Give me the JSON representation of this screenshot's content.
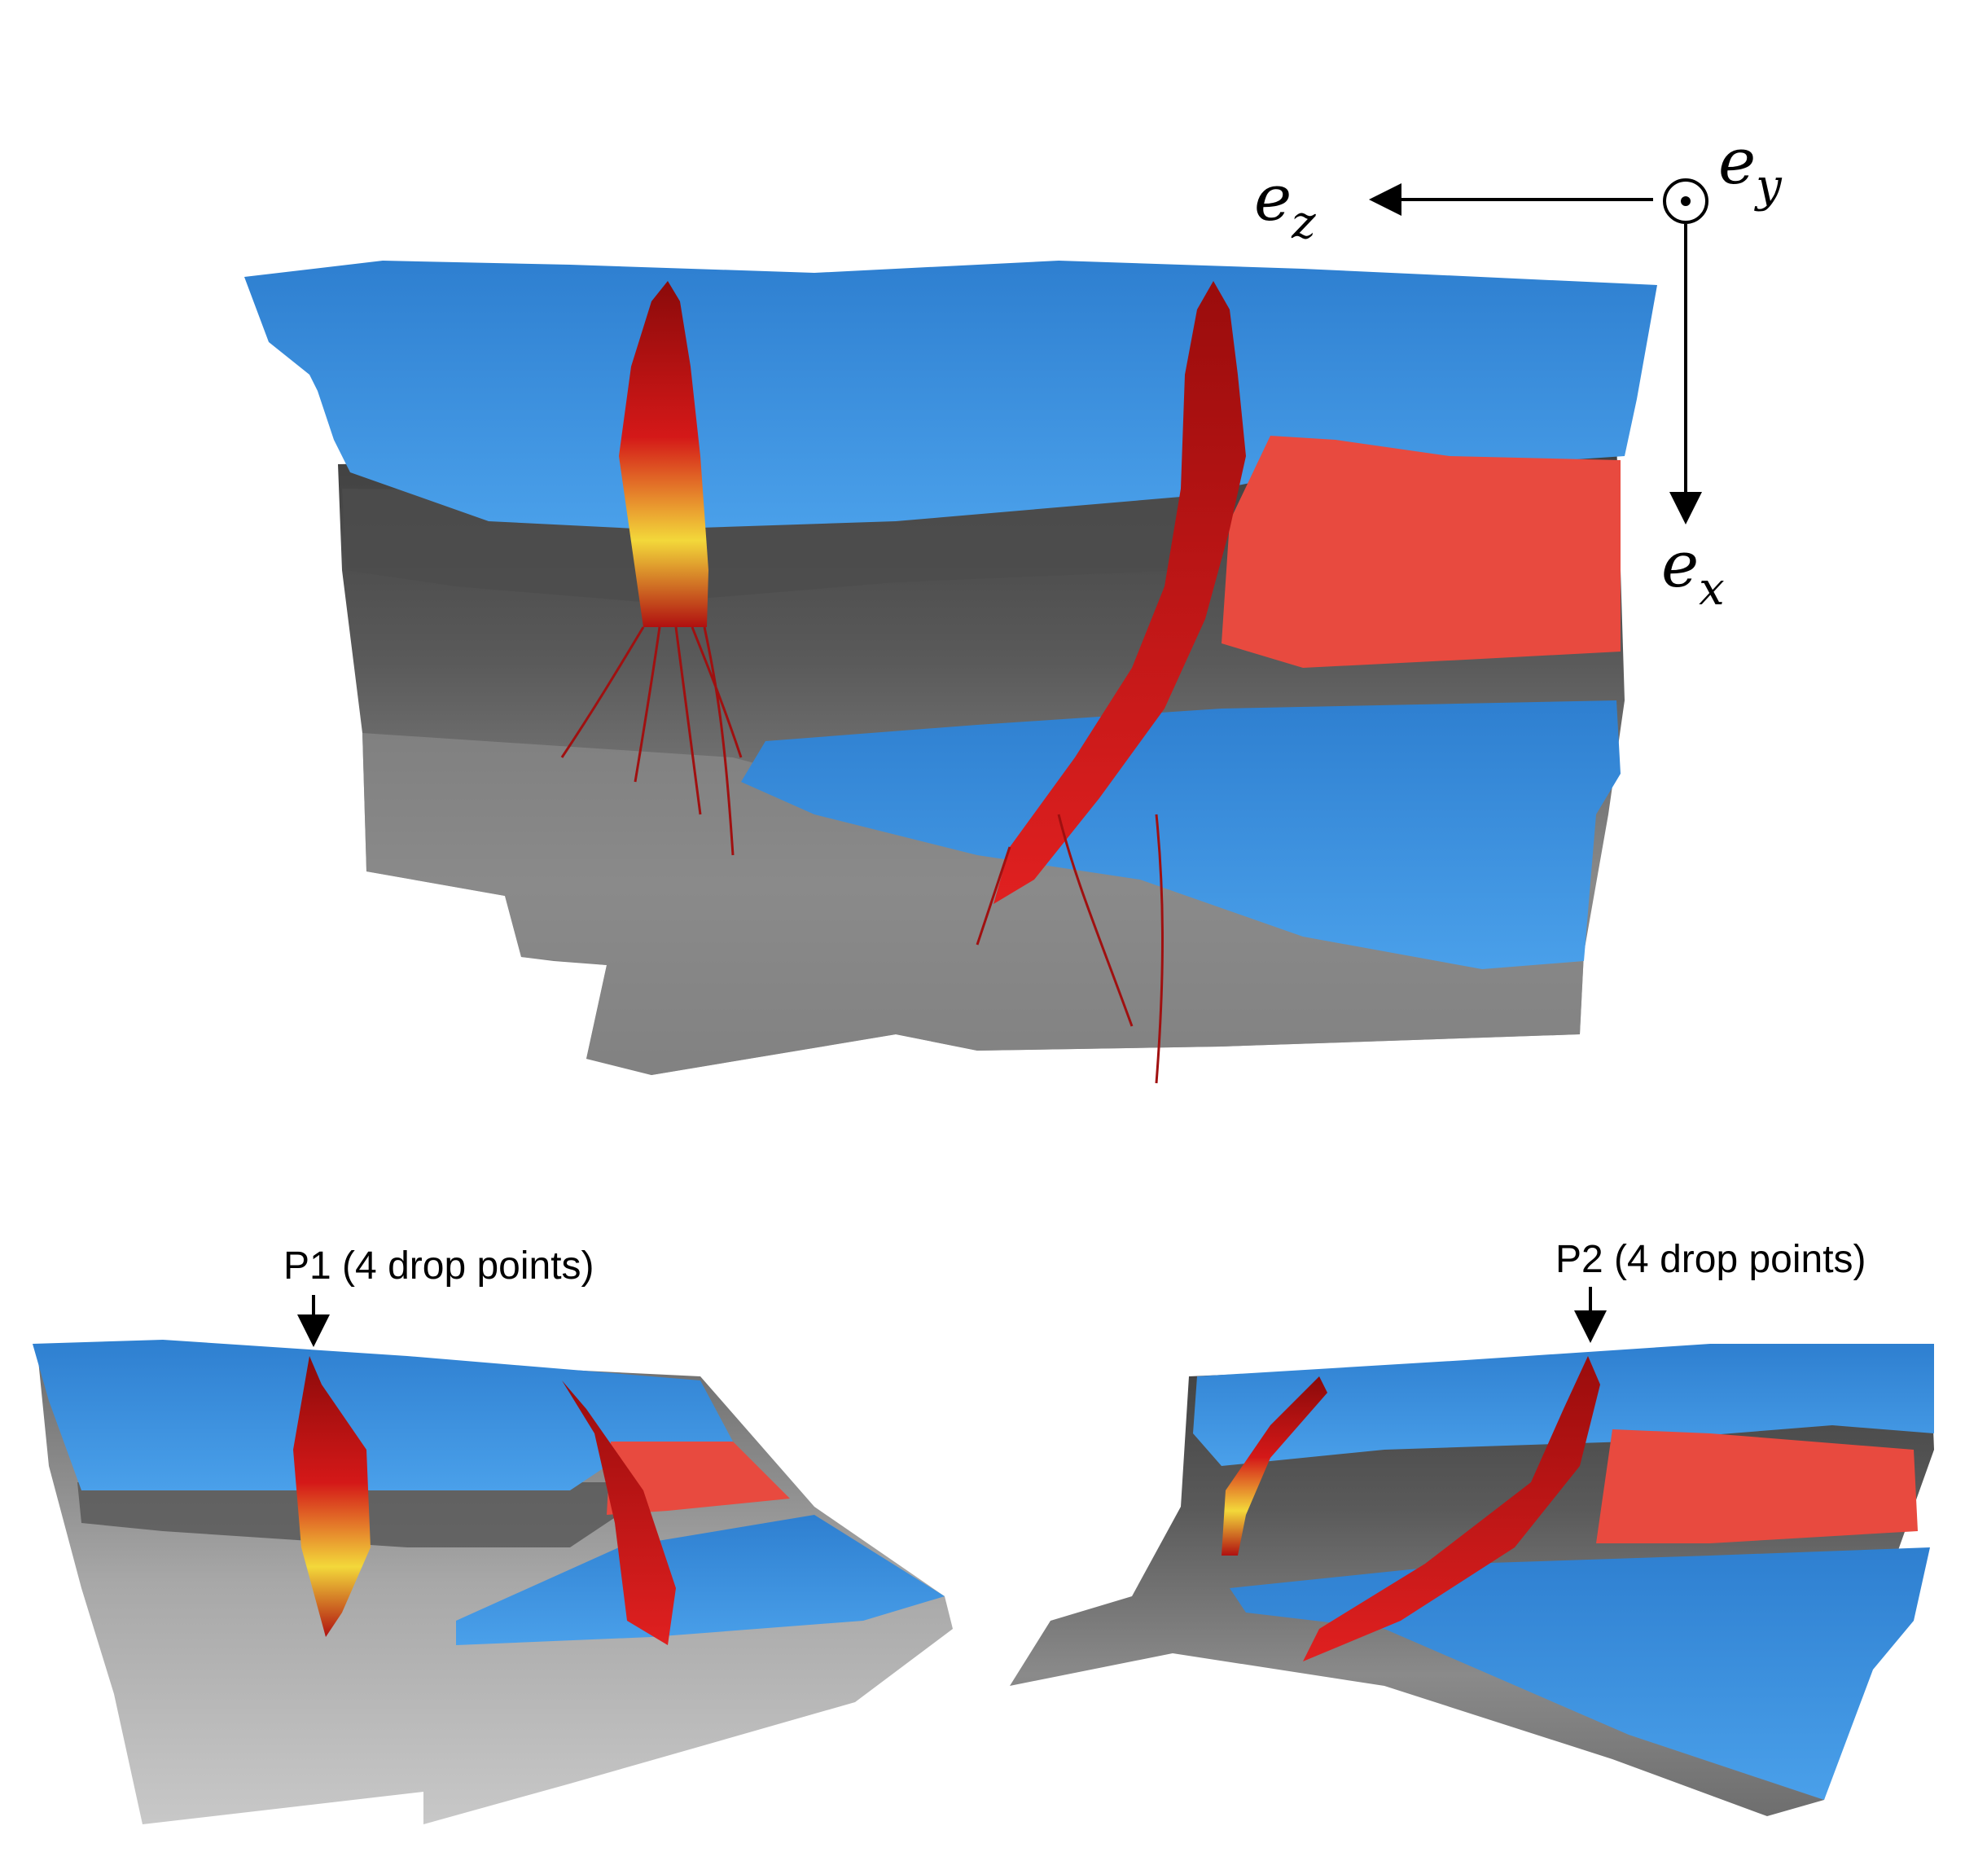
{
  "axes": {
    "ez_base": "e",
    "ez_sub": "z",
    "ey_base": "e",
    "ey_sub": "y",
    "ex_base": "e",
    "ex_sub": "x"
  },
  "annotations": {
    "p1": "P1 (4 drop points)",
    "p2": "P2 (4 drop points)"
  },
  "colors": {
    "water": "#3a8fdc",
    "rock_dark": "#4a4a4a",
    "rock_mid": "#7a7a7a",
    "rock_light": "#b4b4b4",
    "source": "#e8413a",
    "plume": "#d01010",
    "plume_core": "#f2e23a"
  },
  "views": [
    "top-view",
    "left-perspective-view",
    "right-perspective-view"
  ]
}
